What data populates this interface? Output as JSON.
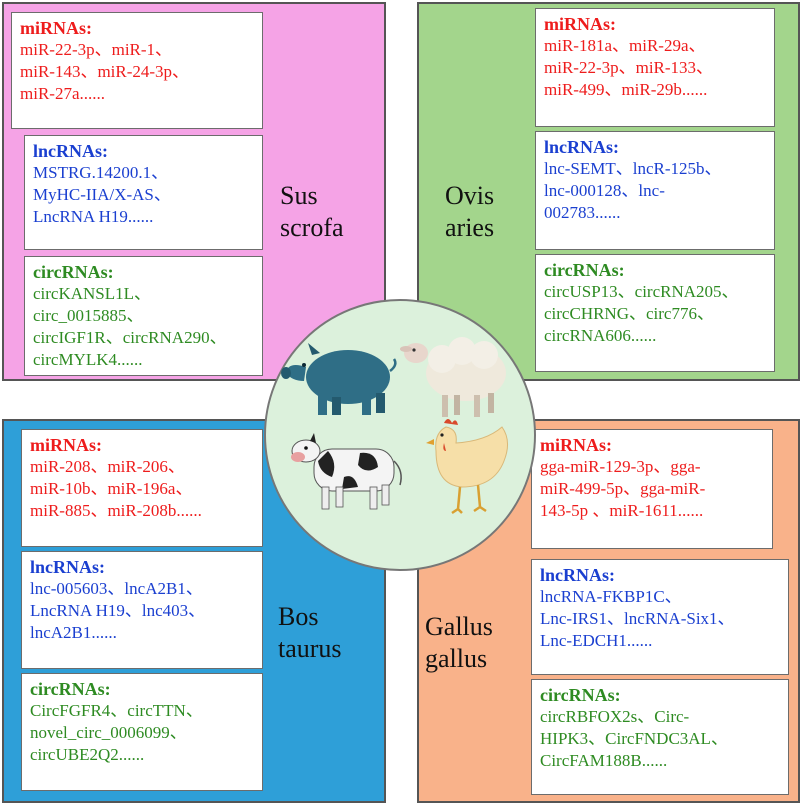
{
  "sus_scrofa": {
    "species": [
      "Sus",
      "scrofa"
    ],
    "mirnas": {
      "title": "miRNAs:",
      "lines": [
        "miR-22-3p、miR-1、",
        "miR-143、miR-24-3p、",
        "miR-27a......"
      ]
    },
    "lncrnas": {
      "title": "lncRNAs:",
      "lines": [
        "MSTRG.14200.1、",
        "MyHC-IIA/X-AS、",
        "LncRNA H19......"
      ]
    },
    "circrnas": {
      "title": "circRNAs:",
      "lines": [
        "circKANSL1L、",
        "circ_0015885、",
        "circIGF1R、circRNA290、",
        "circMYLK4......"
      ]
    }
  },
  "ovis_aries": {
    "species": [
      "Ovis",
      "aries"
    ],
    "mirnas": {
      "title": "miRNAs:",
      "lines": [
        "miR-181a、miR-29a、",
        "miR-22-3p、miR-133、",
        "miR-499、miR-29b......"
      ]
    },
    "lncrnas": {
      "title": "lncRNAs:",
      "lines": [
        "lnc-SEMT、lncR-125b、",
        "lnc-000128、lnc-",
        "002783......"
      ]
    },
    "circrnas": {
      "title": "circRNAs:",
      "lines": [
        "circUSP13、circRNA205、",
        "circCHRNG、circ776、",
        "circRNA606......"
      ]
    }
  },
  "bos_taurus": {
    "species": [
      "Bos",
      "taurus"
    ],
    "mirnas": {
      "title": "miRNAs:",
      "lines": [
        "miR-208、miR-206、",
        "miR-10b、miR-196a、",
        "miR-885、miR-208b......"
      ]
    },
    "lncrnas": {
      "title": "lncRNAs:",
      "lines": [
        "lnc-005603、lncA2B1、",
        "LncRNA H19、lnc403、",
        "lncA2B1......"
      ]
    },
    "circrnas": {
      "title": "circRNAs:",
      "lines": [
        "CircFGFR4、circTTN、",
        "novel_circ_0006099、",
        "circUBE2Q2......"
      ]
    }
  },
  "gallus_gallus": {
    "species": [
      "Gallus",
      "gallus"
    ],
    "mirnas": {
      "title": "miRNAs:",
      "lines": [
        "gga-miR-129-3p、gga-",
        "miR-499-5p、gga-miR-",
        "143-5p 、miR-1611......"
      ]
    },
    "lncrnas": {
      "title": "lncRNAs:",
      "lines": [
        "lncRNA-FKBP1C、",
        "Lnc-IRS1、lncRNA-Six1、",
        "Lnc-EDCH1......"
      ]
    },
    "circrnas": {
      "title": "circRNAs:",
      "lines": [
        "circRBFOX2s、Circ-",
        "HIPK3、CircFNDC3AL、",
        "CircFAM188B......"
      ]
    }
  },
  "colors": {
    "pig_bg": "#f5a3e6",
    "sheep_bg": "#a3d58c",
    "cow_bg": "#2e9fd8",
    "hen_bg": "#f9b28a",
    "mirna_text": "#ee1c1c",
    "lncrna_text": "#1a3fd0",
    "circrna_text": "#2e8b22",
    "center_bg": "#dcf1dc"
  },
  "icons": [
    "pig-icon",
    "sheep-icon",
    "cow-icon",
    "hen-icon"
  ]
}
